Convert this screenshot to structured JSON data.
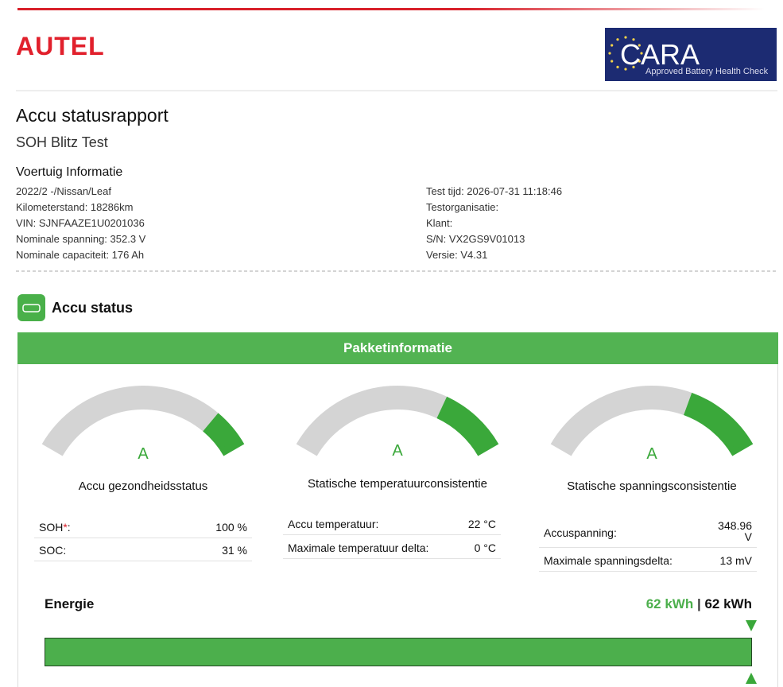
{
  "header": {
    "logo": "AUTEL",
    "badge_title": "CARA",
    "badge_subtitle": "Approved Battery Health Check"
  },
  "report": {
    "title": "Accu statusrapport",
    "subtitle": "SOH Blitz Test"
  },
  "vehicle": {
    "heading": "Voertuig Informatie",
    "left": [
      "2022/2 -/Nissan/Leaf",
      "Kilometerstand: 18286km",
      "VIN: SJNFAAZE1U0201036",
      "Nominale spanning: 352.3 V",
      "Nominale capaciteit: 176 Ah"
    ],
    "right": [
      "Test tijd: 2026-07-31 11:18:46",
      "Testorganisatie:",
      "Klant:",
      "S/N: VX2GS9V01013",
      "Versie: V4.31"
    ]
  },
  "section": {
    "title": "Accu status"
  },
  "panel": {
    "title": "Pakketinformatie",
    "gauges": [
      {
        "grade": "A",
        "label": "Accu gezondheidsstatus",
        "rows": [
          {
            "label": "SOH",
            "asterisk": "*",
            "colon": ":",
            "value": "100 %"
          },
          {
            "label": "SOC:",
            "value": "31 %"
          }
        ]
      },
      {
        "grade": "A",
        "label": "Statische temperatuurconsistentie",
        "rows": [
          {
            "label": "Accu temperatuur:",
            "value": "22 °C"
          },
          {
            "label": "Maximale temperatuur delta:",
            "value": "0 °C"
          }
        ]
      },
      {
        "grade": "A",
        "label": "Statische spanningsconsistentie",
        "rows": [
          {
            "label": "Accuspanning:",
            "value": "348.96 V"
          },
          {
            "label": "Maximale spanningsdelta:",
            "value": "13 mV"
          }
        ]
      }
    ]
  },
  "energy": {
    "label": "Energie",
    "value": "62 kWh",
    "separator": "|",
    "total": "62 kWh"
  }
}
